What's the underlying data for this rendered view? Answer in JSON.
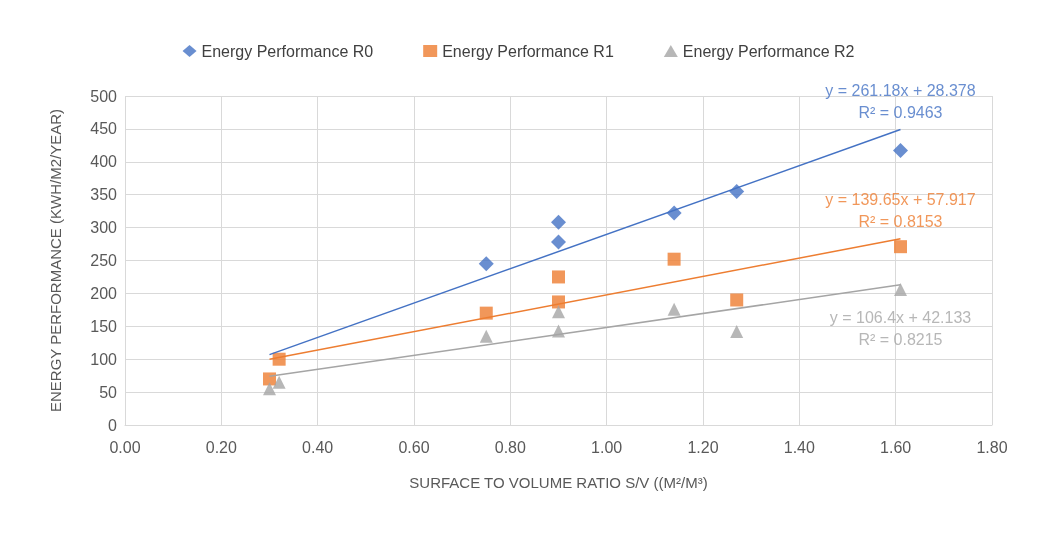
{
  "chart_data": {
    "type": "scatter",
    "xlabel": "SURFACE TO VOLUME RATIO S/V ((M²/M³)",
    "ylabel": "ENERGY PERFORMANCE (KWH/M2/YEAR)",
    "xlim": [
      0,
      1.8
    ],
    "xticks": [
      {
        "value": 0,
        "label": "0.00"
      },
      {
        "value": 0.2,
        "label": "0.20"
      },
      {
        "value": 0.4,
        "label": "0.40"
      },
      {
        "value": 0.6,
        "label": "0.60"
      },
      {
        "value": 0.8,
        "label": "0.80"
      },
      {
        "value": 1,
        "label": "1.00"
      },
      {
        "value": 1.2,
        "label": "1.20"
      },
      {
        "value": 1.4,
        "label": "1.40"
      },
      {
        "value": 1.6,
        "label": "1.60"
      },
      {
        "value": 1.8,
        "label": "1.80"
      }
    ],
    "ylim": [
      0,
      500
    ],
    "yticks": [
      0,
      50,
      100,
      150,
      200,
      250,
      300,
      350,
      400,
      450,
      500
    ],
    "grid": true,
    "legend": "top",
    "series": [
      {
        "name": "Energy Performance R0",
        "color": "#4472c4",
        "marker": "diamond",
        "x": [
          0.75,
          0.9,
          0.9,
          1.14,
          1.27,
          1.61
        ],
        "values": [
          245,
          278,
          308,
          322,
          355,
          417
        ]
      },
      {
        "name": "Energy Performance R1",
        "color": "#ed7d31",
        "marker": "square",
        "x": [
          0.3,
          0.32,
          0.75,
          0.9,
          0.9,
          1.14,
          1.27,
          1.61
        ],
        "values": [
          70,
          100,
          170,
          187,
          225,
          252,
          190,
          271
        ]
      },
      {
        "name": "Energy Performance R2",
        "color": "#a5a5a5",
        "marker": "triangle",
        "x": [
          0.3,
          0.32,
          0.75,
          0.9,
          0.9,
          1.14,
          1.27,
          1.61
        ],
        "values": [
          55,
          65,
          135,
          143,
          172,
          176,
          142,
          206
        ]
      },
      {
        "type": "line",
        "color": "#4472c4",
        "marker": "none",
        "x": [
          0.3,
          1.61
        ],
        "values": [
          107,
          449
        ]
      },
      {
        "type": "line",
        "color": "#ed7d31",
        "marker": "none",
        "x": [
          0.3,
          1.61
        ],
        "values": [
          100,
          283
        ]
      },
      {
        "type": "line",
        "color": "#a5a5a5",
        "marker": "none",
        "x": [
          0.3,
          1.61
        ],
        "values": [
          74,
          213
        ]
      }
    ],
    "annotations": [
      "y = 261.18x + 28.378\nR² = 0.9463",
      "y = 139.65x + 57.917\nR² = 0.8153",
      "y = 106.4x + 42.133\nR² = 0.8215"
    ]
  }
}
